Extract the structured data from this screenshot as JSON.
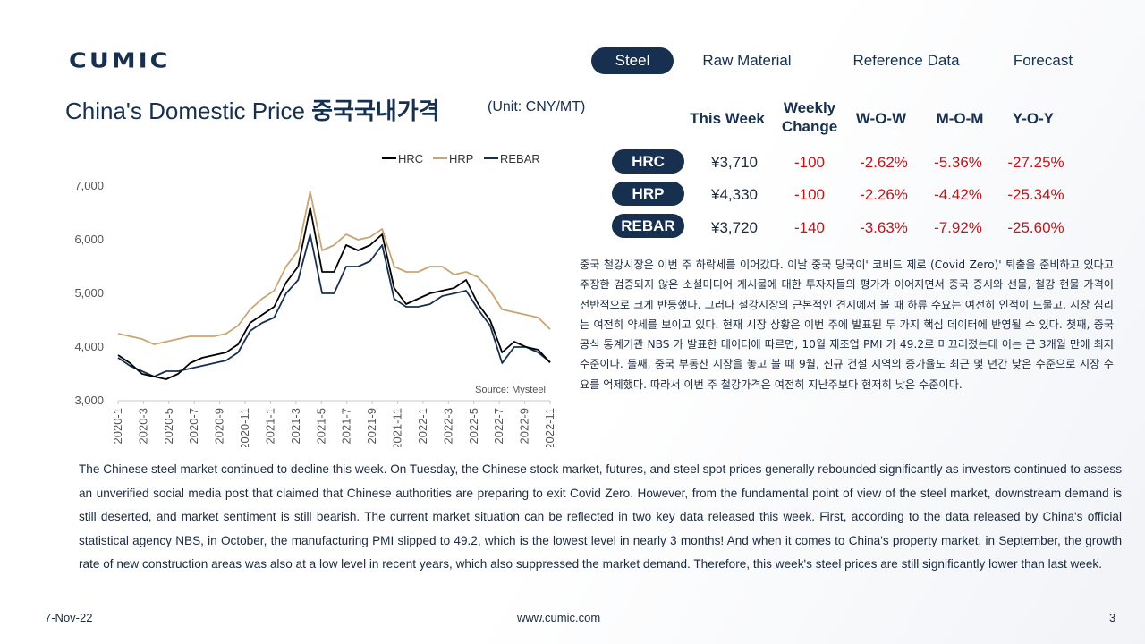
{
  "brand": {
    "logo": "CUMIC"
  },
  "nav": [
    "Steel",
    "Raw Material",
    "Reference Data",
    "Forecast"
  ],
  "title": {
    "en": "China's Domestic Price ",
    "ko": "중국국내가격",
    "unit": "(Unit: CNY/MT)"
  },
  "table": {
    "headers": [
      "This Week",
      "Weekly Change",
      "W-O-W",
      "M-O-M",
      "Y-O-Y"
    ],
    "rows": [
      {
        "label": "HRC",
        "price": "¥3,710",
        "weekly": "-100",
        "wow": "-2.62%",
        "mom": "-5.36%",
        "yoy": "-27.25%"
      },
      {
        "label": "HRP",
        "price": "¥4,330",
        "weekly": "-100",
        "wow": "-2.26%",
        "mom": "-4.42%",
        "yoy": "-25.34%"
      },
      {
        "label": "REBAR",
        "price": "¥3,720",
        "weekly": "-140",
        "wow": "-3.63%",
        "mom": "-7.92%",
        "yoy": "-25.60%"
      }
    ]
  },
  "commentary_ko": "중국 철강시장은 이번 주 하락세를 이어갔다. 이날 중국 당국이' 코비드 제로 (Covid Zero)' 퇴출을 준비하고 있다고 주장한 검증되지 않은 소셜미디어 게시물에 대한 투자자들의 평가가 이어지면서 중국 증시와 선물, 철강 현물 가격이 전반적으로 크게 반등했다. 그러나 철강시장의 근본적인 견지에서 볼 때 하류 수요는 여전히 인적이 드물고, 시장 심리는 여전히 약세를 보이고 있다. 현재 시장 상황은 이번 주에 발표된 두 가지 핵심 데이터에 반영될 수 있다. 첫째, 중국 공식 통계기관 NBS 가 발표한 데이터에 따르면, 10월 제조업 PMI 가 49.2로 미끄러졌는데 이는 근 3개월 만에 최저 수준이다. 둘째, 중국 부동산 시장을 놓고 볼 때 9월, 신규 건설 지역의 증가율도 최근 몇 년간 낮은 수준으로 시장 수요를 억제했다. 따라서 이번 주 철강가격은 여전히 지난주보다 현저히 낮은 수준이다.",
  "commentary_en": "The Chinese steel market continued to decline this week. On Tuesday, the Chinese stock market, futures, and steel spot prices generally rebounded significantly as investors continued to assess an unverified social media post that claimed that Chinese authorities are preparing to exit Covid Zero. However, from the fundamental point of view of the steel market, downstream demand is still deserted, and market sentiment is still bearish. The current market situation can be reflected in two key data released this week. First, according to the data released by China's official statistical agency NBS, in October, the manufacturing PMI slipped to 49.2, which is the lowest level in nearly 3 months! And when it comes to China's property market, in September, the growth rate of new construction areas was also at a low level in recent years, which also suppressed the market demand. Therefore, this week's steel prices are still significantly lower than last week.",
  "footer": {
    "date": "7-Nov-22",
    "url": "www.cumic.com",
    "page": "3"
  },
  "colors": {
    "navy": "#17304f",
    "HRC": "#000000",
    "HRP": "#c9a574",
    "REBAR": "#17304f",
    "negative": "#c0151b"
  },
  "chart_data": {
    "type": "line",
    "source": "Source: Mysteel",
    "ylim": [
      3000,
      7000
    ],
    "yticks": [
      "3,000",
      "4,000",
      "5,000",
      "6,000",
      "7,000"
    ],
    "xticks": [
      "2020-1",
      "2020-3",
      "2020-5",
      "2020-7",
      "2020-9",
      "2020-11",
      "2021-1",
      "2021-3",
      "2021-5",
      "2021-7",
      "2021-9",
      "2021-11",
      "2022-1",
      "2022-3",
      "2022-5",
      "2022-7",
      "2022-9",
      "2022-11"
    ],
    "legend_position": "top",
    "x": [
      "2020-01",
      "2020-02",
      "2020-03",
      "2020-04",
      "2020-05",
      "2020-06",
      "2020-07",
      "2020-08",
      "2020-09",
      "2020-10",
      "2020-11",
      "2020-12",
      "2021-01",
      "2021-02",
      "2021-03",
      "2021-04",
      "2021-05a",
      "2021-05b",
      "2021-06",
      "2021-07",
      "2021-08",
      "2021-09",
      "2021-10a",
      "2021-10b",
      "2021-11",
      "2021-12",
      "2022-01",
      "2022-02",
      "2022-03",
      "2022-04",
      "2022-05",
      "2022-06",
      "2022-07",
      "2022-08",
      "2022-09",
      "2022-10",
      "2022-11"
    ],
    "series": [
      {
        "name": "HRC",
        "values": [
          3850,
          3700,
          3500,
          3450,
          3400,
          3500,
          3700,
          3800,
          3850,
          3900,
          4050,
          4450,
          4600,
          4750,
          5200,
          5500,
          6600,
          5400,
          5400,
          5900,
          5800,
          5900,
          6100,
          5100,
          4800,
          4900,
          5000,
          5050,
          5100,
          5250,
          4800,
          4500,
          3900,
          4100,
          4000,
          3950,
          3710
        ]
      },
      {
        "name": "HRP",
        "values": [
          4250,
          4200,
          4150,
          4050,
          4100,
          4150,
          4200,
          4200,
          4200,
          4250,
          4400,
          4700,
          4900,
          5050,
          5500,
          5800,
          6900,
          5800,
          5900,
          6100,
          6000,
          6050,
          6200,
          5500,
          5400,
          5400,
          5500,
          5500,
          5350,
          5400,
          5300,
          5050,
          4700,
          4650,
          4600,
          4550,
          4330
        ]
      },
      {
        "name": "REBAR",
        "values": [
          3800,
          3650,
          3550,
          3450,
          3550,
          3550,
          3600,
          3650,
          3700,
          3750,
          3900,
          4300,
          4450,
          4550,
          5000,
          5250,
          6100,
          5000,
          5000,
          5500,
          5500,
          5600,
          5900,
          4900,
          4750,
          4750,
          4800,
          4950,
          5000,
          5050,
          4700,
          4400,
          3700,
          4000,
          4000,
          3900,
          3720
        ]
      }
    ]
  }
}
